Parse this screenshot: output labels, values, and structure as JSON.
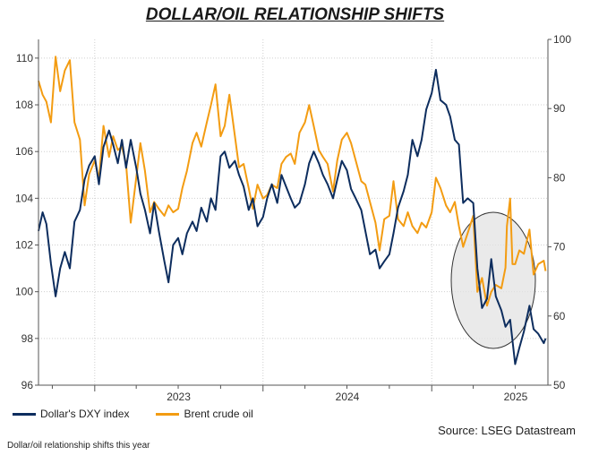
{
  "chart_data": {
    "type": "line",
    "title": "DOLLAR/OIL RELATIONSHIP SHIFTS",
    "x_ticks": [
      "2023",
      "2024",
      "2025"
    ],
    "y_left": {
      "ticks": [
        96,
        98,
        100,
        102,
        104,
        106,
        108,
        110
      ],
      "range": [
        96,
        110.8
      ]
    },
    "y_right": {
      "ticks": [
        50,
        60,
        70,
        80,
        90,
        100
      ],
      "range": [
        50,
        100
      ]
    },
    "x_range": [
      "2022-09-01",
      "2025-09-10"
    ],
    "grid": true,
    "legend_position": "bottom-left",
    "highlight_ellipse_text": "",
    "series": [
      {
        "name": "Dollar's DXY index",
        "axis": "left",
        "color": "#0d2d5e",
        "points": [
          [
            "2022-09-01",
            102.6
          ],
          [
            "2022-09-10",
            103.4
          ],
          [
            "2022-09-18",
            102.9
          ],
          [
            "2022-09-28",
            101.2
          ],
          [
            "2022-10-08",
            99.8
          ],
          [
            "2022-10-18",
            101.0
          ],
          [
            "2022-10-28",
            101.7
          ],
          [
            "2022-11-08",
            101.0
          ],
          [
            "2022-11-18",
            103.0
          ],
          [
            "2022-11-30",
            103.5
          ],
          [
            "2022-12-10",
            104.8
          ],
          [
            "2022-12-20",
            105.4
          ],
          [
            "2023-01-01",
            105.8
          ],
          [
            "2023-01-10",
            104.6
          ],
          [
            "2023-01-20",
            106.2
          ],
          [
            "2023-02-01",
            106.9
          ],
          [
            "2023-02-10",
            106.3
          ],
          [
            "2023-02-20",
            105.5
          ],
          [
            "2023-03-01",
            106.5
          ],
          [
            "2023-03-10",
            105.3
          ],
          [
            "2023-03-20",
            106.5
          ],
          [
            "2023-04-01",
            105.3
          ],
          [
            "2023-04-10",
            104.2
          ],
          [
            "2023-04-20",
            103.5
          ],
          [
            "2023-05-01",
            102.5
          ],
          [
            "2023-05-10",
            103.8
          ],
          [
            "2023-05-20",
            102.6
          ],
          [
            "2023-06-01",
            101.3
          ],
          [
            "2023-06-10",
            100.4
          ],
          [
            "2023-06-20",
            102.0
          ],
          [
            "2023-07-01",
            102.3
          ],
          [
            "2023-07-10",
            101.6
          ],
          [
            "2023-07-20",
            102.5
          ],
          [
            "2023-08-01",
            103.0
          ],
          [
            "2023-08-10",
            102.6
          ],
          [
            "2023-08-20",
            103.6
          ],
          [
            "2023-09-01",
            103.0
          ],
          [
            "2023-09-10",
            104.0
          ],
          [
            "2023-09-20",
            103.5
          ],
          [
            "2023-10-01",
            105.8
          ],
          [
            "2023-10-10",
            106.0
          ],
          [
            "2023-10-20",
            105.3
          ],
          [
            "2023-11-01",
            105.6
          ],
          [
            "2023-11-10",
            105.0
          ],
          [
            "2023-11-20",
            104.5
          ],
          [
            "2023-12-01",
            103.5
          ],
          [
            "2023-12-10",
            104.0
          ],
          [
            "2023-12-20",
            102.8
          ],
          [
            "2024-01-01",
            103.2
          ],
          [
            "2024-01-10",
            104.0
          ],
          [
            "2024-01-20",
            104.6
          ],
          [
            "2024-02-01",
            103.8
          ],
          [
            "2024-02-10",
            105.0
          ],
          [
            "2024-02-20",
            104.5
          ],
          [
            "2024-03-01",
            104.0
          ],
          [
            "2024-03-10",
            103.6
          ],
          [
            "2024-03-20",
            103.8
          ],
          [
            "2024-04-01",
            104.6
          ],
          [
            "2024-04-10",
            105.5
          ],
          [
            "2024-04-20",
            106.0
          ],
          [
            "2024-05-01",
            105.5
          ],
          [
            "2024-05-10",
            105.0
          ],
          [
            "2024-05-20",
            104.6
          ],
          [
            "2024-06-01",
            104.0
          ],
          [
            "2024-06-10",
            104.8
          ],
          [
            "2024-06-20",
            105.6
          ],
          [
            "2024-07-01",
            105.2
          ],
          [
            "2024-07-10",
            104.4
          ],
          [
            "2024-07-20",
            104.0
          ],
          [
            "2024-08-01",
            103.5
          ],
          [
            "2024-08-10",
            102.6
          ],
          [
            "2024-08-20",
            101.6
          ],
          [
            "2024-09-01",
            101.8
          ],
          [
            "2024-09-10",
            101.0
          ],
          [
            "2024-09-20",
            101.3
          ],
          [
            "2024-10-01",
            101.6
          ],
          [
            "2024-10-10",
            102.5
          ],
          [
            "2024-10-20",
            103.6
          ],
          [
            "2024-11-01",
            104.3
          ],
          [
            "2024-11-10",
            105.0
          ],
          [
            "2024-11-20",
            106.5
          ],
          [
            "2024-12-01",
            105.8
          ],
          [
            "2024-12-10",
            106.5
          ],
          [
            "2024-12-20",
            107.8
          ],
          [
            "2025-01-01",
            108.5
          ],
          [
            "2025-01-10",
            109.5
          ],
          [
            "2025-01-20",
            108.2
          ],
          [
            "2025-02-01",
            108.0
          ],
          [
            "2025-02-10",
            107.5
          ],
          [
            "2025-02-20",
            106.5
          ],
          [
            "2025-03-01",
            106.3
          ],
          [
            "2025-03-10",
            103.8
          ],
          [
            "2025-03-20",
            104.0
          ],
          [
            "2025-04-01",
            103.8
          ],
          [
            "2025-04-10",
            101.0
          ],
          [
            "2025-04-20",
            99.3
          ],
          [
            "2025-05-01",
            99.7
          ],
          [
            "2025-05-10",
            101.4
          ],
          [
            "2025-05-20",
            99.8
          ],
          [
            "2025-06-01",
            99.2
          ],
          [
            "2025-06-10",
            98.5
          ],
          [
            "2025-06-20",
            98.8
          ],
          [
            "2025-07-01",
            96.9
          ],
          [
            "2025-07-10",
            97.6
          ],
          [
            "2025-07-20",
            98.3
          ],
          [
            "2025-08-01",
            99.4
          ],
          [
            "2025-08-10",
            98.4
          ],
          [
            "2025-08-20",
            98.2
          ],
          [
            "2025-09-01",
            97.8
          ],
          [
            "2025-09-05",
            98.0
          ]
        ]
      },
      {
        "name": "Brent crude oil",
        "axis": "right",
        "color": "#f39c12",
        "points": [
          [
            "2022-09-01",
            94.0
          ],
          [
            "2022-09-10",
            92.0
          ],
          [
            "2022-09-18",
            91.0
          ],
          [
            "2022-09-28",
            88.0
          ],
          [
            "2022-10-08",
            97.5
          ],
          [
            "2022-10-18",
            92.5
          ],
          [
            "2022-10-28",
            95.5
          ],
          [
            "2022-11-08",
            97.0
          ],
          [
            "2022-11-18",
            88.0
          ],
          [
            "2022-11-30",
            85.5
          ],
          [
            "2022-12-10",
            76.0
          ],
          [
            "2022-12-20",
            80.5
          ],
          [
            "2023-01-01",
            82.5
          ],
          [
            "2023-01-10",
            79.8
          ],
          [
            "2023-01-20",
            87.5
          ],
          [
            "2023-02-01",
            83.0
          ],
          [
            "2023-02-10",
            86.0
          ],
          [
            "2023-02-20",
            84.0
          ],
          [
            "2023-03-01",
            84.5
          ],
          [
            "2023-03-10",
            82.0
          ],
          [
            "2023-03-20",
            73.5
          ],
          [
            "2023-04-01",
            80.0
          ],
          [
            "2023-04-10",
            85.0
          ],
          [
            "2023-04-20",
            81.0
          ],
          [
            "2023-05-01",
            75.0
          ],
          [
            "2023-05-10",
            76.5
          ],
          [
            "2023-05-20",
            75.5
          ],
          [
            "2023-06-01",
            74.5
          ],
          [
            "2023-06-10",
            76.0
          ],
          [
            "2023-06-20",
            75.0
          ],
          [
            "2023-07-01",
            75.5
          ],
          [
            "2023-07-10",
            78.5
          ],
          [
            "2023-07-20",
            81.0
          ],
          [
            "2023-08-01",
            85.0
          ],
          [
            "2023-08-10",
            86.5
          ],
          [
            "2023-08-20",
            84.5
          ],
          [
            "2023-09-01",
            88.0
          ],
          [
            "2023-09-10",
            90.5
          ],
          [
            "2023-09-20",
            93.5
          ],
          [
            "2023-10-01",
            86.0
          ],
          [
            "2023-10-10",
            87.5
          ],
          [
            "2023-10-20",
            92.0
          ],
          [
            "2023-11-01",
            86.0
          ],
          [
            "2023-11-10",
            81.5
          ],
          [
            "2023-11-20",
            82.0
          ],
          [
            "2023-12-01",
            78.5
          ],
          [
            "2023-12-10",
            75.5
          ],
          [
            "2023-12-20",
            79.0
          ],
          [
            "2024-01-01",
            77.0
          ],
          [
            "2024-01-10",
            77.5
          ],
          [
            "2024-01-20",
            79.0
          ],
          [
            "2024-02-01",
            78.5
          ],
          [
            "2024-02-10",
            82.0
          ],
          [
            "2024-02-20",
            83.0
          ],
          [
            "2024-03-01",
            83.5
          ],
          [
            "2024-03-10",
            82.0
          ],
          [
            "2024-03-20",
            86.5
          ],
          [
            "2024-04-01",
            88.0
          ],
          [
            "2024-04-10",
            90.5
          ],
          [
            "2024-04-20",
            87.5
          ],
          [
            "2024-05-01",
            84.0
          ],
          [
            "2024-05-10",
            83.0
          ],
          [
            "2024-05-20",
            82.0
          ],
          [
            "2024-06-01",
            78.0
          ],
          [
            "2024-06-10",
            82.5
          ],
          [
            "2024-06-20",
            85.5
          ],
          [
            "2024-07-01",
            86.5
          ],
          [
            "2024-07-10",
            85.0
          ],
          [
            "2024-07-20",
            82.5
          ],
          [
            "2024-08-01",
            79.5
          ],
          [
            "2024-08-10",
            79.0
          ],
          [
            "2024-08-20",
            76.5
          ],
          [
            "2024-09-01",
            73.5
          ],
          [
            "2024-09-10",
            69.5
          ],
          [
            "2024-09-20",
            74.0
          ],
          [
            "2024-10-01",
            74.5
          ],
          [
            "2024-10-10",
            79.5
          ],
          [
            "2024-10-20",
            74.0
          ],
          [
            "2024-11-01",
            73.0
          ],
          [
            "2024-11-10",
            75.0
          ],
          [
            "2024-11-20",
            73.0
          ],
          [
            "2024-12-01",
            72.0
          ],
          [
            "2024-12-10",
            73.5
          ],
          [
            "2024-12-20",
            72.8
          ],
          [
            "2025-01-01",
            75.0
          ],
          [
            "2025-01-10",
            80.0
          ],
          [
            "2025-01-20",
            78.5
          ],
          [
            "2025-02-01",
            76.0
          ],
          [
            "2025-02-10",
            75.0
          ],
          [
            "2025-02-20",
            76.5
          ],
          [
            "2025-03-01",
            73.0
          ],
          [
            "2025-03-10",
            70.0
          ],
          [
            "2025-03-20",
            72.0
          ],
          [
            "2025-04-01",
            74.5
          ],
          [
            "2025-04-10",
            63.5
          ],
          [
            "2025-04-20",
            65.5
          ],
          [
            "2025-05-01",
            61.5
          ],
          [
            "2025-05-10",
            63.5
          ],
          [
            "2025-05-20",
            64.5
          ],
          [
            "2025-06-01",
            64.0
          ],
          [
            "2025-06-10",
            67.0
          ],
          [
            "2025-06-13",
            73.0
          ],
          [
            "2025-06-20",
            77.0
          ],
          [
            "2025-06-25",
            67.5
          ],
          [
            "2025-07-01",
            67.5
          ],
          [
            "2025-07-10",
            69.5
          ],
          [
            "2025-07-20",
            69.0
          ],
          [
            "2025-08-01",
            72.5
          ],
          [
            "2025-08-10",
            66.0
          ],
          [
            "2025-08-20",
            67.5
          ],
          [
            "2025-09-01",
            68.0
          ],
          [
            "2025-09-05",
            66.5
          ]
        ]
      }
    ]
  },
  "legend": [
    {
      "label": "Dollar's DXY index",
      "color": "#0d2d5e"
    },
    {
      "label": "Brent crude oil",
      "color": "#f39c12"
    }
  ],
  "source": "Source: LSEG Datastream",
  "caption": "Dollar/oil relationship shifts this year"
}
